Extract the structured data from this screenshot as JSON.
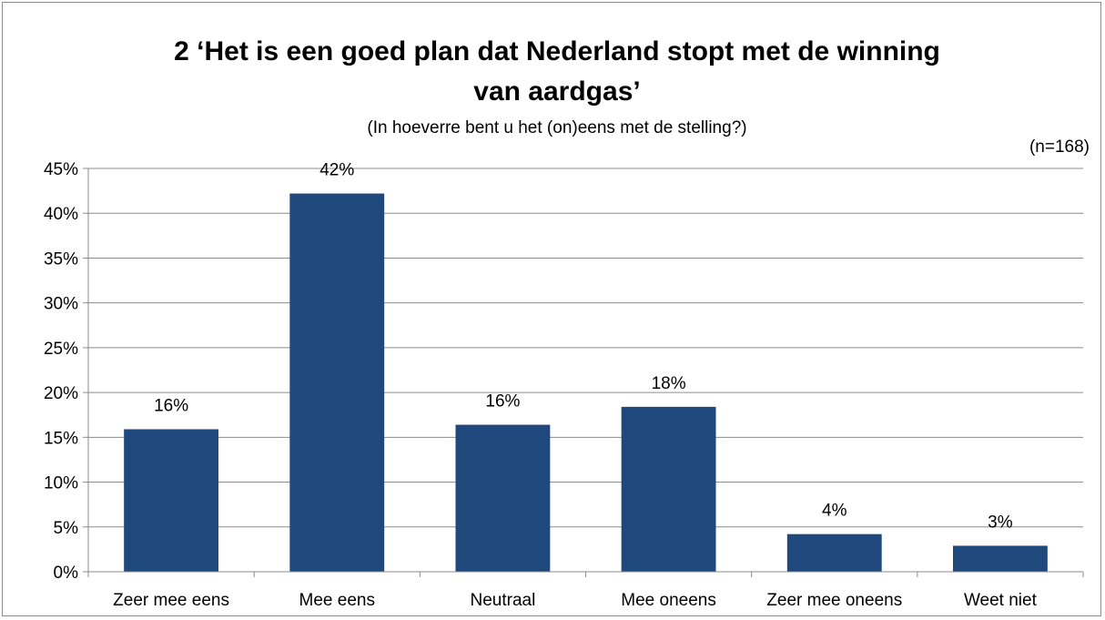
{
  "chart_data": {
    "type": "bar",
    "title_line1": "2 ‘Het is een goed plan dat Nederland stopt met de winning",
    "title_line2": "van aardgas’",
    "subtitle": "(In hoeverre bent u het (on)eens met de stelling?)",
    "note": "(n=168)",
    "categories": [
      "Zeer mee eens",
      "Mee eens",
      "Neutraal",
      "Mee oneens",
      "Zeer mee oneens",
      "Weet niet"
    ],
    "values": [
      16,
      42,
      16,
      18,
      4,
      3
    ],
    "value_labels": [
      "16%",
      "42%",
      "16%",
      "18%",
      "4%",
      "3%"
    ],
    "bar_values_precise": [
      15.9,
      42.2,
      16.4,
      18.4,
      4.2,
      2.9
    ],
    "yticks": [
      "0%",
      "5%",
      "10%",
      "15%",
      "20%",
      "25%",
      "30%",
      "35%",
      "40%",
      "45%"
    ],
    "ylim": [
      0,
      45
    ],
    "grid": true,
    "bar_color": "#1f497d",
    "grid_color": "#8c8c8c"
  }
}
